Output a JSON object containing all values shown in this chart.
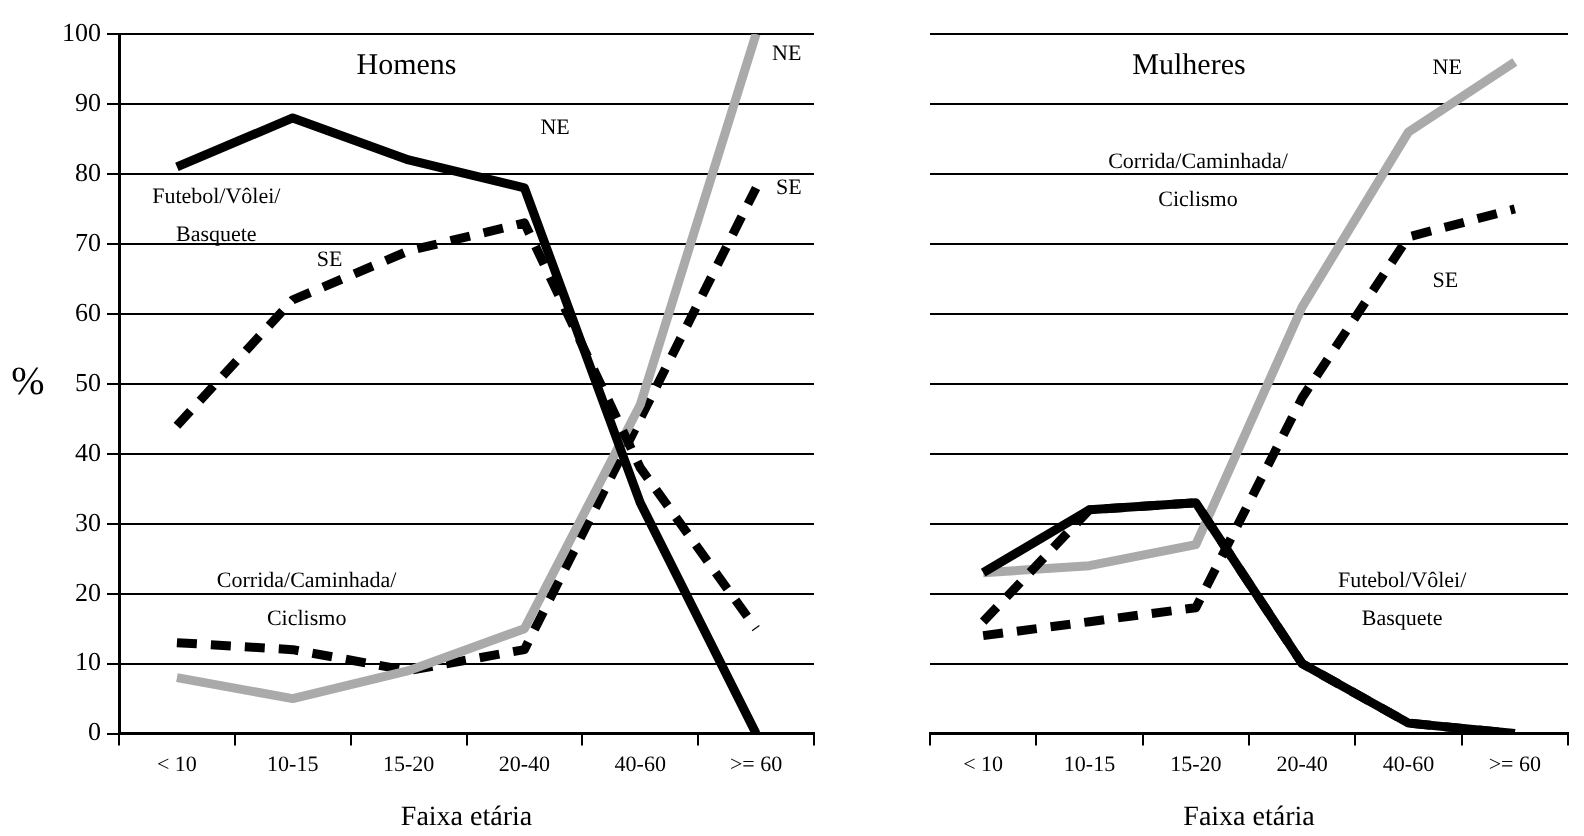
{
  "chart_data": [
    {
      "type": "line",
      "title": "Homens",
      "xlabel": "Faixa etária",
      "ylabel": "%",
      "categories": [
        "< 10",
        "10-15",
        "15-20",
        "20-40",
        "40-60",
        ">= 60"
      ],
      "ylim": [
        0,
        100
      ],
      "yticks": [
        0,
        10,
        20,
        30,
        40,
        50,
        60,
        70,
        80,
        90,
        100
      ],
      "grid": "y",
      "legend": false,
      "marker": "none",
      "series": [
        {
          "name": "NE",
          "color": "#000000",
          "line_style": "solid",
          "values": [
            81,
            88,
            82,
            78,
            33,
            0
          ]
        },
        {
          "name": "SE",
          "color": "#000000",
          "line_style": "dashed",
          "values": [
            44,
            62,
            69,
            73,
            38,
            15
          ]
        },
        {
          "name": "NE",
          "color": "#aaaaaa",
          "line_style": "solid",
          "values": [
            8,
            5,
            9,
            15,
            47,
            100
          ]
        },
        {
          "name": "SE",
          "color": "#000000",
          "line_style": "dashed",
          "values": [
            13,
            12,
            9,
            12,
            45,
            78
          ]
        }
      ],
      "annotations": [
        "Futebol/Vôlei/\nBasquete",
        "Corrida/Caminhada/\nCiclismo"
      ]
    },
    {
      "type": "line",
      "title": "Mulheres",
      "xlabel": "Faixa etária",
      "categories": [
        "< 10",
        "10-15",
        "15-20",
        "20-40",
        "40-60",
        ">= 60"
      ],
      "ylim": [
        0,
        100
      ],
      "yticks": [
        0,
        10,
        20,
        30,
        40,
        50,
        60,
        70,
        80,
        90,
        100
      ],
      "grid": "y",
      "legend": false,
      "marker": "none",
      "tick_labels": "x",
      "series": [
        {
          "color": "#000000",
          "line_style": "solid",
          "values": [
            23,
            32,
            33,
            10,
            1.5,
            0
          ]
        },
        {
          "color": "#000000",
          "line_style": "dashed",
          "values": [
            16,
            32,
            33,
            10,
            1.5,
            0
          ]
        },
        {
          "name": "NE",
          "color": "#aaaaaa",
          "line_style": "solid",
          "values": [
            23,
            24,
            27,
            61,
            86,
            96
          ]
        },
        {
          "name": "SE",
          "color": "#000000",
          "line_style": "dashed",
          "values": [
            14,
            16,
            18,
            48,
            71,
            75
          ]
        }
      ],
      "annotations": [
        "Corrida/Caminhada/\nCiclismo",
        "Futebol/Vôlei/\nBasquete"
      ]
    }
  ]
}
